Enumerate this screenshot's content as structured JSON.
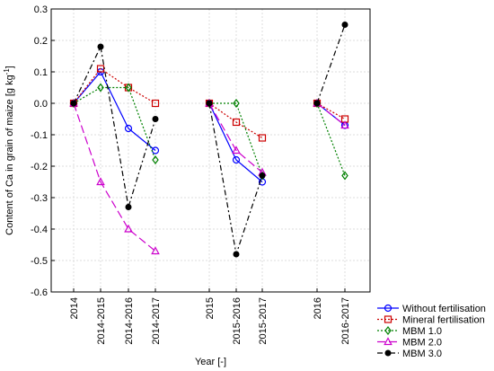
{
  "chart_data": {
    "type": "line",
    "title": "",
    "xlabel": "Year [-]",
    "ylabel_main": "Content of Ca in grain of maize [g kg",
    "ylabel_sup": "-1",
    "ylabel_end": "]",
    "ylim": [
      -0.6,
      0.3
    ],
    "yticks": [
      "0.3",
      "0.2",
      "0.1",
      "0.0",
      "-0.1",
      "-0.2",
      "-0.3",
      "-0.4",
      "-0.5",
      "-0.6"
    ],
    "categories": [
      "2014",
      "2014-2015",
      "2014-2016",
      "2014-2017",
      "2015",
      "2015-2016",
      "2015-2017",
      "2016",
      "2016-2017"
    ],
    "grid": true,
    "legend_position": "bottom-right",
    "groups": [
      [
        0,
        1,
        2,
        3
      ],
      [
        4,
        5,
        6
      ],
      [
        7,
        8
      ]
    ],
    "series": [
      {
        "name": "Without fertilisation",
        "color": "#0000ff",
        "marker": "circle-open",
        "dash": "solid",
        "values": [
          0.0,
          0.1,
          -0.08,
          -0.15,
          0.0,
          -0.18,
          -0.25,
          0.0,
          -0.07
        ]
      },
      {
        "name": "Mineral fertilisation",
        "color": "#cc0000",
        "marker": "square-open",
        "dash": "dot",
        "values": [
          0.0,
          0.11,
          0.05,
          0.0,
          0.0,
          -0.06,
          -0.11,
          0.0,
          -0.05
        ]
      },
      {
        "name": "MBM 1.0",
        "color": "#008000",
        "marker": "diamond-open",
        "dash": "dot",
        "values": [
          0.0,
          0.05,
          0.05,
          -0.18,
          0.0,
          0.0,
          -0.23,
          0.0,
          -0.23
        ]
      },
      {
        "name": "MBM 2.0",
        "color": "#cc00cc",
        "marker": "triangle-open",
        "dash": "longdash",
        "values": [
          0.0,
          -0.25,
          -0.4,
          -0.47,
          0.0,
          -0.15,
          -0.22,
          0.0,
          -0.07
        ]
      },
      {
        "name": "MBM 3.0",
        "color": "#000000",
        "marker": "circle-filled",
        "dash": "dashdot",
        "values": [
          0.0,
          0.18,
          -0.33,
          -0.05,
          0.0,
          -0.48,
          -0.23,
          0.0,
          0.25
        ]
      }
    ]
  }
}
